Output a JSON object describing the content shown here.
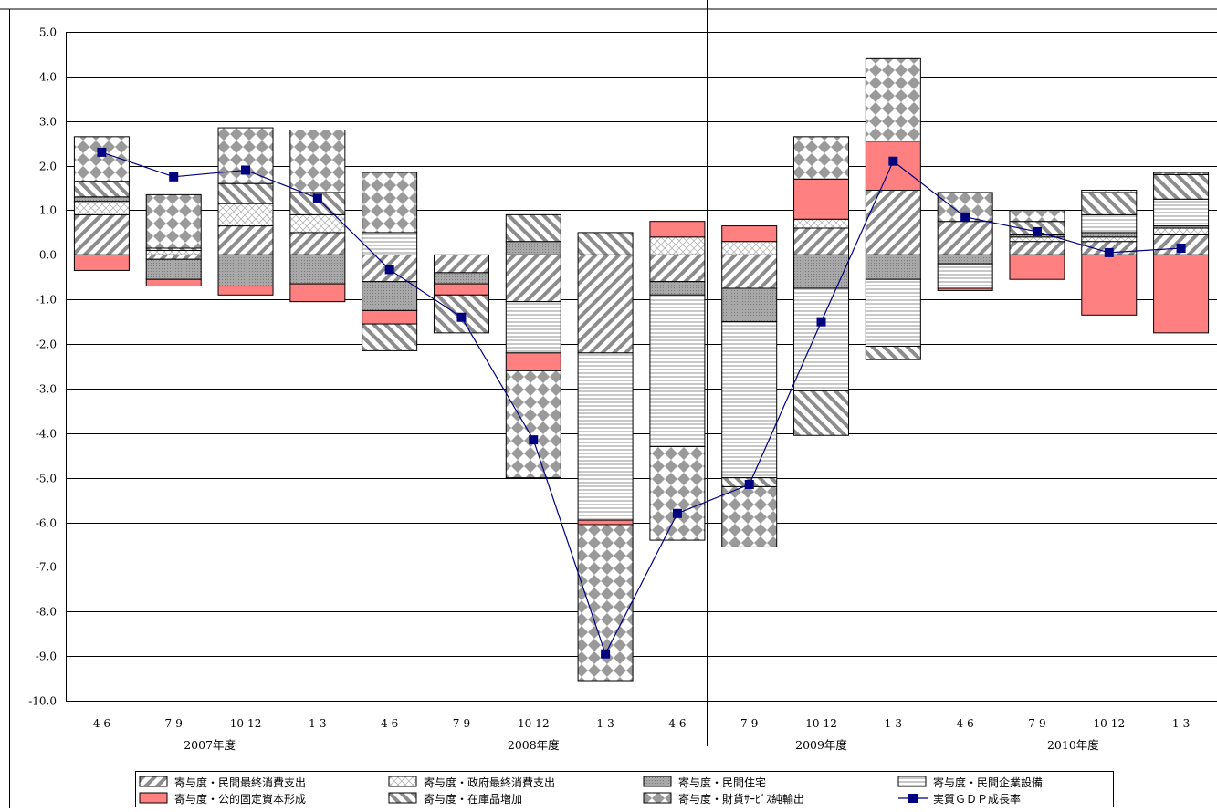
{
  "chart_data": {
    "type": "bar",
    "subtype": "stacked-bar-with-line",
    "title": "",
    "xlabel": "",
    "ylabel": "",
    "ylim": [
      -10,
      5
    ],
    "y_ticks": [
      "5.0",
      "4.0",
      "3.0",
      "2.0",
      "1.0",
      "0.0",
      "-1.0",
      "-2.0",
      "-3.0",
      "-4.0",
      "-5.0",
      "-6.0",
      "-7.0",
      "-8.0",
      "-9.0",
      "-10.0"
    ],
    "grid": true,
    "legend_position": "bottom",
    "categories": [
      "4-6",
      "7-9",
      "10-12",
      "1-3",
      "4-6",
      "7-9",
      "10-12",
      "1-3",
      "4-6",
      "7-9",
      "10-12",
      "1-3",
      "4-6",
      "7-9",
      "10-12",
      "1-3"
    ],
    "year_labels": [
      {
        "label": "2007年度",
        "span": [
          0,
          3
        ]
      },
      {
        "label": "2008年度",
        "span": [
          4,
          8
        ]
      },
      {
        "label": "2009年度",
        "span": [
          9,
          11
        ]
      },
      {
        "label": "2010年度",
        "span": [
          12,
          15
        ]
      }
    ],
    "divider_after_index": 8,
    "series": [
      {
        "name": "寄与度・民間最終消費支出",
        "pattern": "diag-fwd",
        "values": [
          0.9,
          -0.1,
          0.65,
          0.5,
          -0.6,
          -0.4,
          -1.05,
          -2.2,
          -0.6,
          -0.75,
          0.6,
          1.45,
          0.75,
          0.3,
          0.3,
          0.45
        ]
      },
      {
        "name": "寄与度・政府最終消費支出",
        "pattern": "cross",
        "values": [
          0.3,
          0.1,
          0.5,
          0.4,
          0.0,
          0.0,
          0.0,
          0.0,
          0.4,
          0.3,
          0.2,
          0.0,
          0.0,
          0.1,
          0.1,
          0.15
        ]
      },
      {
        "name": "寄与度・民間住宅",
        "pattern": "gray-dots",
        "values": [
          0.1,
          -0.45,
          -0.7,
          -0.65,
          -0.65,
          -0.25,
          0.3,
          0.0,
          -0.3,
          -0.75,
          -0.75,
          -0.55,
          -0.2,
          0.05,
          0.1,
          0.05
        ]
      },
      {
        "name": "寄与度・民間企業設備",
        "pattern": "hstripe",
        "values": [
          0.0,
          0.0,
          0.0,
          0.0,
          0.5,
          0.0,
          -1.15,
          -3.75,
          -3.4,
          -3.5,
          -2.3,
          -1.5,
          -0.55,
          0.0,
          0.4,
          0.6
        ]
      },
      {
        "name": "寄与度・公的固定資本形成",
        "pattern": "solid-red",
        "values": [
          -0.35,
          -0.15,
          -0.2,
          -0.4,
          -0.3,
          -0.25,
          -0.4,
          -0.1,
          0.35,
          0.35,
          0.9,
          1.1,
          -0.05,
          -0.55,
          -1.35,
          -1.75
        ]
      },
      {
        "name": "寄与度・在庫品増加",
        "pattern": "diag-back",
        "values": [
          0.35,
          0.05,
          0.45,
          0.5,
          -0.6,
          -0.85,
          0.6,
          0.5,
          0.0,
          -0.2,
          -1.0,
          -0.3,
          0.0,
          0.3,
          0.5,
          0.55
        ]
      },
      {
        "name": "寄与度・財貨ｻｰﾋﾞｽ純輸出",
        "pattern": "diamond",
        "values": [
          1.0,
          1.2,
          1.25,
          1.4,
          1.35,
          0.0,
          -2.4,
          -3.5,
          -2.1,
          -1.35,
          0.95,
          1.85,
          0.65,
          0.25,
          0.05,
          0.05
        ]
      }
    ],
    "line": {
      "name": "実質ＧＤＰ成長率",
      "color": "#000080",
      "values": [
        2.3,
        1.75,
        1.9,
        1.27,
        -0.33,
        -1.4,
        -4.15,
        -8.95,
        -5.8,
        -5.15,
        -1.5,
        2.1,
        0.85,
        0.52,
        0.05,
        0.15
      ]
    }
  }
}
